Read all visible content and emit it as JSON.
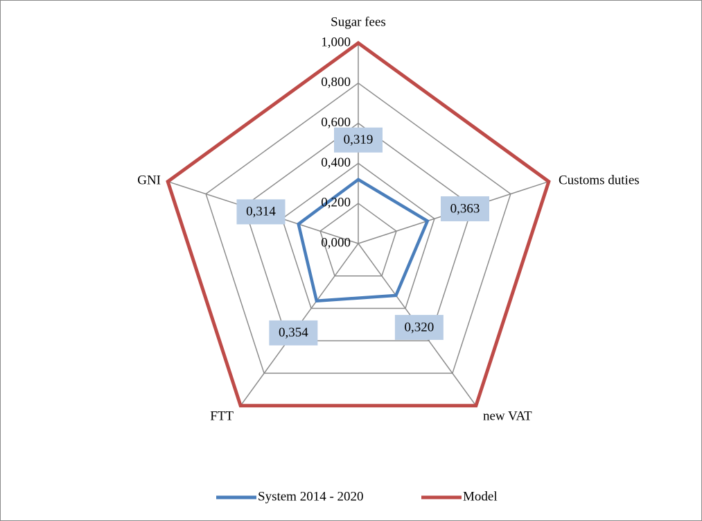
{
  "chart_data": {
    "type": "radar",
    "categories": [
      "Sugar fees",
      "Customs duties",
      "new VAT",
      "FTT",
      "GNI"
    ],
    "series": [
      {
        "name": "System 2014 - 2020",
        "color": "#4a7ebb",
        "values": [
          0.319,
          0.363,
          0.32,
          0.354,
          0.314
        ],
        "value_labels": [
          "0,319",
          "0,363",
          "0,320",
          "0,354",
          "0,314"
        ]
      },
      {
        "name": "Model",
        "color": "#be4b48",
        "values": [
          1,
          1,
          1,
          1,
          1
        ]
      }
    ],
    "ylim": [
      0,
      1
    ],
    "yticks": [
      {
        "value": 0,
        "label": "0,000"
      },
      {
        "value": 0.2,
        "label": "0,200"
      },
      {
        "value": 0.4,
        "label": "0,400"
      },
      {
        "value": 0.6,
        "label": "0,600"
      },
      {
        "value": 0.8,
        "label": "0,800"
      },
      {
        "value": 1,
        "label": "1,000"
      }
    ],
    "grid": true,
    "legend": "bottom"
  }
}
